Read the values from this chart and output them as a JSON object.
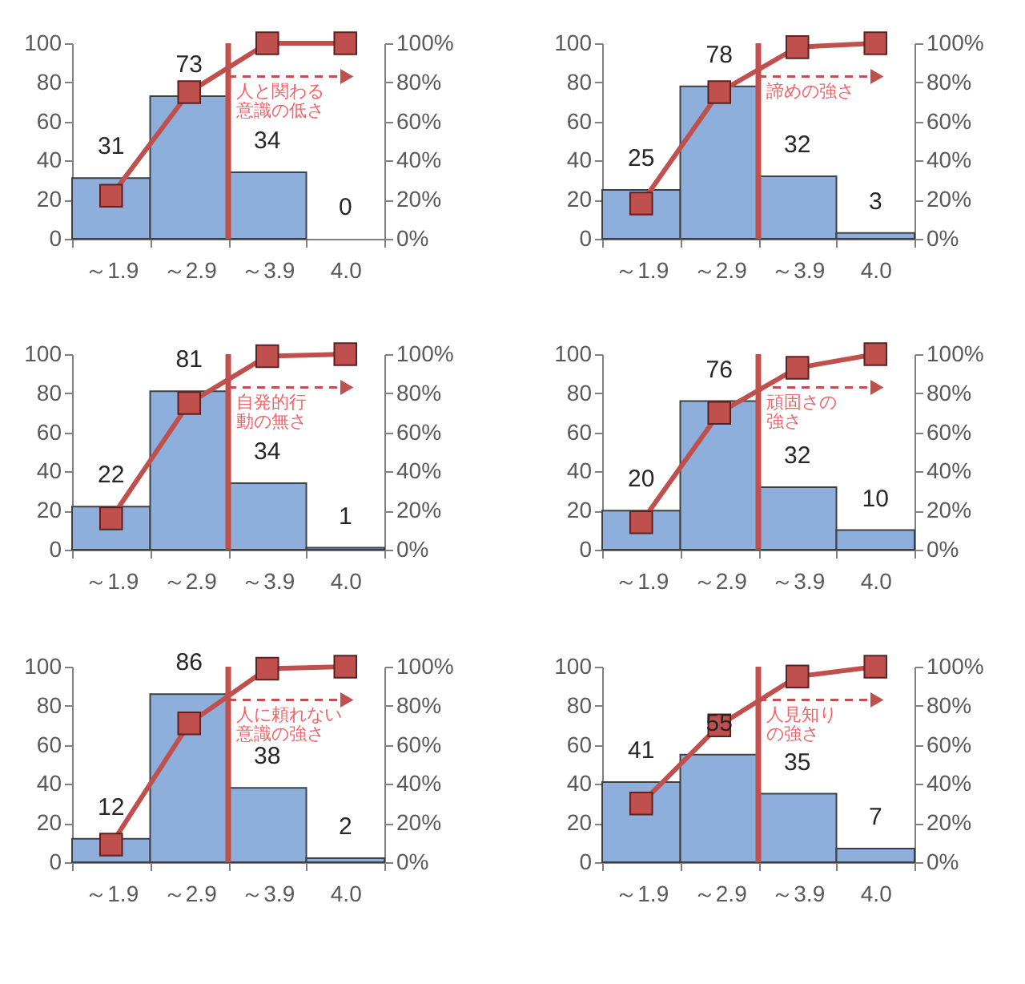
{
  "chart_data": [
    {
      "type": "bar",
      "categories": [
        "～1.9",
        "～2.9",
        "～3.9",
        "4.0"
      ],
      "series": [
        {
          "color": "#8eaedb",
          "values": [
            31,
            73,
            34,
            0
          ],
          "value_labels": [
            "31",
            "73",
            "34",
            "0"
          ]
        },
        {
          "type": "line",
          "axis": "y2",
          "color": "#c0504d",
          "marker": "square",
          "values": [
            22,
            75,
            100,
            100
          ]
        }
      ],
      "ylim": [
        0,
        100
      ],
      "yticks": [
        0,
        20,
        40,
        60,
        80,
        100
      ],
      "y2lim": [
        0,
        100
      ],
      "y2ticks": [
        {
          "value": 0,
          "label": "0%"
        },
        {
          "value": 20,
          "label": "20%"
        },
        {
          "value": 40,
          "label": "40%"
        },
        {
          "value": 60,
          "label": "60%"
        },
        {
          "value": 80,
          "label": "80%"
        },
        {
          "value": 100,
          "label": "100%"
        }
      ],
      "ref_lines": [
        {
          "axis": "x",
          "value": "～3.9",
          "color": "#c0504d"
        }
      ],
      "annotations": [
        "人と関わる意識の低さ"
      ]
    },
    {
      "type": "bar",
      "categories": [
        "～1.9",
        "～2.9",
        "～3.9",
        "4.0"
      ],
      "series": [
        {
          "color": "#8eaedb",
          "values": [
            25,
            78,
            32,
            3
          ],
          "value_labels": [
            "25",
            "78",
            "32",
            "3"
          ]
        },
        {
          "type": "line",
          "axis": "y2",
          "color": "#c0504d",
          "marker": "square",
          "values": [
            18,
            75,
            98,
            100
          ]
        }
      ],
      "ylim": [
        0,
        100
      ],
      "yticks": [
        0,
        20,
        40,
        60,
        80,
        100
      ],
      "y2lim": [
        0,
        100
      ],
      "y2ticks": [
        {
          "value": 0,
          "label": "0%"
        },
        {
          "value": 20,
          "label": "20%"
        },
        {
          "value": 40,
          "label": "40%"
        },
        {
          "value": 60,
          "label": "60%"
        },
        {
          "value": 80,
          "label": "80%"
        },
        {
          "value": 100,
          "label": "100%"
        }
      ],
      "ref_lines": [
        {
          "axis": "x",
          "value": "～3.9",
          "color": "#c0504d"
        }
      ],
      "annotations": [
        "諦めの強さ"
      ]
    },
    {
      "type": "bar",
      "categories": [
        "～1.9",
        "～2.9",
        "～3.9",
        "4.0"
      ],
      "series": [
        {
          "color": "#8eaedb",
          "values": [
            22,
            81,
            34,
            1
          ],
          "value_labels": [
            "22",
            "81",
            "34",
            "1"
          ]
        },
        {
          "type": "line",
          "axis": "y2",
          "color": "#c0504d",
          "marker": "square",
          "values": [
            16,
            75,
            99,
            100
          ]
        }
      ],
      "ylim": [
        0,
        100
      ],
      "yticks": [
        0,
        20,
        40,
        60,
        80,
        100
      ],
      "y2lim": [
        0,
        100
      ],
      "y2ticks": [
        {
          "value": 0,
          "label": "0%"
        },
        {
          "value": 20,
          "label": "20%"
        },
        {
          "value": 40,
          "label": "40%"
        },
        {
          "value": 60,
          "label": "60%"
        },
        {
          "value": 80,
          "label": "80%"
        },
        {
          "value": 100,
          "label": "100%"
        }
      ],
      "ref_lines": [
        {
          "axis": "x",
          "value": "～3.9",
          "color": "#c0504d"
        }
      ],
      "annotations": [
        "自発的行動の無さ"
      ]
    },
    {
      "type": "bar",
      "categories": [
        "～1.9",
        "～2.9",
        "～3.9",
        "4.0"
      ],
      "series": [
        {
          "color": "#8eaedb",
          "values": [
            20,
            76,
            32,
            10
          ],
          "value_labels": [
            "20",
            "76",
            "32",
            "10"
          ]
        },
        {
          "type": "line",
          "axis": "y2",
          "color": "#c0504d",
          "marker": "square",
          "values": [
            14,
            70,
            93,
            100
          ]
        }
      ],
      "ylim": [
        0,
        100
      ],
      "yticks": [
        0,
        20,
        40,
        60,
        80,
        100
      ],
      "y2lim": [
        0,
        100
      ],
      "y2ticks": [
        {
          "value": 0,
          "label": "0%"
        },
        {
          "value": 20,
          "label": "20%"
        },
        {
          "value": 40,
          "label": "40%"
        },
        {
          "value": 60,
          "label": "60%"
        },
        {
          "value": 80,
          "label": "80%"
        },
        {
          "value": 100,
          "label": "100%"
        }
      ],
      "ref_lines": [
        {
          "axis": "x",
          "value": "～3.9",
          "color": "#c0504d"
        }
      ],
      "annotations": [
        "頑固さの強さ"
      ]
    },
    {
      "type": "bar",
      "categories": [
        "～1.9",
        "～2.9",
        "～3.9",
        "4.0"
      ],
      "series": [
        {
          "color": "#8eaedb",
          "values": [
            12,
            86,
            38,
            2
          ],
          "value_labels": [
            "12",
            "86",
            "38",
            "2"
          ]
        },
        {
          "type": "line",
          "axis": "y2",
          "color": "#c0504d",
          "marker": "square",
          "values": [
            9,
            71,
            99,
            100
          ]
        }
      ],
      "ylim": [
        0,
        100
      ],
      "yticks": [
        0,
        20,
        40,
        60,
        80,
        100
      ],
      "y2lim": [
        0,
        100
      ],
      "y2ticks": [
        {
          "value": 0,
          "label": "0%"
        },
        {
          "value": 20,
          "label": "20%"
        },
        {
          "value": 40,
          "label": "40%"
        },
        {
          "value": 60,
          "label": "60%"
        },
        {
          "value": 80,
          "label": "80%"
        },
        {
          "value": 100,
          "label": "100%"
        }
      ],
      "ref_lines": [
        {
          "axis": "x",
          "value": "～3.9",
          "color": "#c0504d"
        }
      ],
      "annotations": [
        "人に頼れない意識の強さ"
      ]
    },
    {
      "type": "bar",
      "categories": [
        "～1.9",
        "～2.9",
        "～3.9",
        "4.0"
      ],
      "series": [
        {
          "color": "#8eaedb",
          "values": [
            41,
            55,
            35,
            7
          ],
          "value_labels": [
            "41",
            "55",
            "35",
            "7"
          ]
        },
        {
          "type": "line",
          "axis": "y2",
          "color": "#c0504d",
          "marker": "square",
          "values": [
            30,
            70,
            95,
            100
          ]
        }
      ],
      "ylim": [
        0,
        100
      ],
      "yticks": [
        0,
        20,
        40,
        60,
        80,
        100
      ],
      "y2lim": [
        0,
        100
      ],
      "y2ticks": [
        {
          "value": 0,
          "label": "0%"
        },
        {
          "value": 20,
          "label": "20%"
        },
        {
          "value": 40,
          "label": "40%"
        },
        {
          "value": 60,
          "label": "60%"
        },
        {
          "value": 80,
          "label": "80%"
        },
        {
          "value": 100,
          "label": "100%"
        }
      ],
      "ref_lines": [
        {
          "axis": "x",
          "value": "～3.9",
          "color": "#c0504d"
        }
      ],
      "annotations": [
        "人見知りの強さ"
      ]
    }
  ]
}
